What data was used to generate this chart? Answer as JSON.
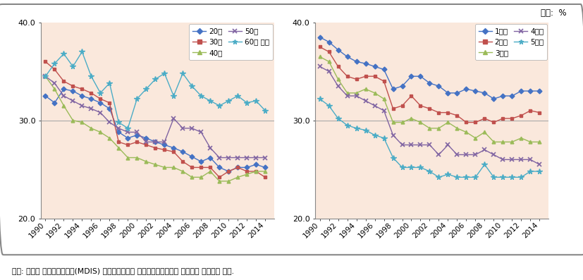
{
  "years": [
    1990,
    1991,
    1992,
    1993,
    1994,
    1995,
    1996,
    1997,
    1998,
    1999,
    2000,
    2001,
    2002,
    2003,
    2004,
    2005,
    2006,
    2007,
    2008,
    2009,
    2010,
    2011,
    2012,
    2013,
    2014
  ],
  "xtick_labels": [
    "1990",
    "",
    "1992",
    "",
    "1994",
    "",
    "1996",
    "",
    "1998",
    "",
    "2000",
    "",
    "2002",
    "",
    "2004",
    "",
    "2006",
    "",
    "2008",
    "",
    "2010",
    "",
    "2012",
    "",
    "2014"
  ],
  "left_chart": {
    "20s": [
      32.5,
      31.8,
      33.2,
      33.0,
      32.5,
      32.2,
      31.8,
      31.2,
      28.8,
      28.2,
      28.5,
      28.2,
      27.8,
      27.5,
      27.2,
      26.8,
      26.3,
      25.8,
      26.2,
      25.2,
      24.8,
      25.2,
      25.2,
      25.5,
      25.2
    ],
    "30s": [
      36.0,
      35.2,
      34.0,
      33.5,
      33.2,
      32.8,
      32.2,
      31.8,
      27.8,
      27.5,
      27.8,
      27.5,
      27.2,
      27.0,
      26.8,
      25.8,
      25.2,
      25.2,
      25.2,
      24.2,
      24.8,
      25.2,
      24.8,
      24.8,
      24.2
    ],
    "40s": [
      34.5,
      33.2,
      31.5,
      30.0,
      29.8,
      29.2,
      28.8,
      28.2,
      27.2,
      26.2,
      26.2,
      25.8,
      25.5,
      25.2,
      25.2,
      24.8,
      24.2,
      24.2,
      24.8,
      23.8,
      23.8,
      24.2,
      24.5,
      24.8,
      24.8
    ],
    "50s": [
      34.5,
      33.8,
      32.5,
      32.0,
      31.5,
      31.2,
      30.8,
      29.8,
      29.2,
      28.8,
      28.8,
      27.8,
      27.8,
      27.8,
      30.2,
      29.2,
      29.2,
      28.8,
      27.2,
      26.2,
      26.2,
      26.2,
      26.2,
      26.2,
      26.2
    ],
    "60s": [
      34.5,
      35.8,
      36.8,
      35.5,
      37.0,
      34.5,
      32.8,
      33.8,
      29.8,
      29.2,
      32.2,
      33.2,
      34.2,
      34.8,
      32.5,
      34.8,
      33.5,
      32.5,
      32.0,
      31.5,
      32.0,
      32.5,
      31.8,
      32.0,
      31.0
    ]
  },
  "right_chart": {
    "1bun": [
      38.5,
      38.0,
      37.2,
      36.5,
      36.0,
      35.8,
      35.5,
      35.2,
      33.2,
      33.5,
      34.5,
      34.5,
      33.8,
      33.5,
      32.8,
      32.8,
      33.2,
      33.0,
      32.8,
      32.2,
      32.5,
      32.5,
      33.0,
      33.0,
      33.0
    ],
    "2bun": [
      37.5,
      37.0,
      35.5,
      34.5,
      34.2,
      34.5,
      34.5,
      34.0,
      31.2,
      31.5,
      32.5,
      31.5,
      31.2,
      30.8,
      30.8,
      30.5,
      29.8,
      29.8,
      30.2,
      29.8,
      30.2,
      30.2,
      30.5,
      31.0,
      30.8
    ],
    "3bun": [
      36.5,
      36.0,
      34.2,
      32.8,
      32.8,
      33.2,
      32.8,
      32.2,
      29.8,
      29.8,
      30.2,
      29.8,
      29.2,
      29.2,
      29.8,
      29.2,
      28.8,
      28.2,
      28.8,
      27.8,
      27.8,
      27.8,
      28.2,
      27.8,
      27.8
    ],
    "4bun": [
      35.5,
      35.0,
      33.5,
      32.5,
      32.5,
      32.0,
      31.5,
      31.0,
      28.5,
      27.5,
      27.5,
      27.5,
      27.5,
      26.5,
      27.5,
      26.5,
      26.5,
      26.5,
      27.0,
      26.5,
      26.0,
      26.0,
      26.0,
      26.0,
      25.5
    ],
    "5bun": [
      32.2,
      31.5,
      30.2,
      29.5,
      29.2,
      29.0,
      28.5,
      28.2,
      26.2,
      25.2,
      25.2,
      25.2,
      24.8,
      24.2,
      24.5,
      24.2,
      24.2,
      24.2,
      25.5,
      24.2,
      24.2,
      24.2,
      24.2,
      24.8,
      24.8
    ]
  },
  "colors": {
    "blue": "#4472C4",
    "red": "#C0504D",
    "green": "#9BBB59",
    "purple": "#8064A2",
    "cyan": "#4BACC6"
  },
  "bg_color": "#FAE8DC",
  "ylim": [
    20.0,
    40.0
  ],
  "yticks": [
    20.0,
    30.0,
    40.0
  ],
  "source_text": "자료: 통계청 마이크로데이터(MDIS) 원격접근서비스 〈가계동향조사〉를 이용하여 원시자료 분석.",
  "unit_text": "단위:  %",
  "left_labels": [
    "20대",
    "30대",
    "40대",
    "50대",
    "60대 이상"
  ],
  "right_labels": [
    "1분위",
    "2분위",
    "3분위",
    "4분위",
    "5분위"
  ]
}
